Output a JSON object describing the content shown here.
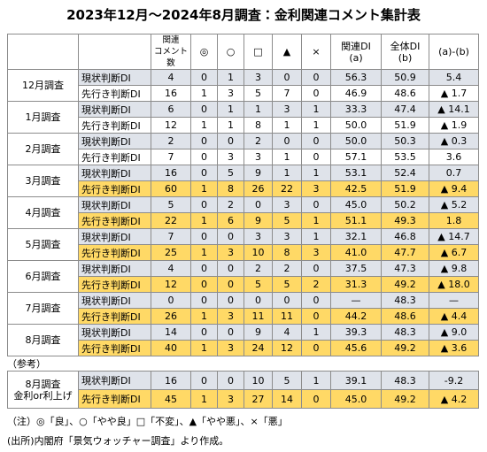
{
  "title": "2023年12月～2024年8月調査：金利関連コメント集計表",
  "table": {
    "header": [
      "",
      "",
      "関連\nコメント数",
      "◎",
      "○",
      "□",
      "▲",
      "×",
      "関連DI\n(a)",
      "全体DI\n(b)",
      "(a)-(b)"
    ],
    "groups": [
      {
        "label": "12月調査",
        "rows": [
          {
            "label": "現状判断DI",
            "cells": [
              "4",
              "0",
              "1",
              "3",
              "0",
              "0",
              "56.3",
              "50.9",
              "5.4"
            ]
          },
          {
            "label": "先行き判断DI",
            "cells": [
              "16",
              "1",
              "3",
              "5",
              "7",
              "0",
              "46.9",
              "48.6",
              "▲ 1.7"
            ]
          }
        ]
      },
      {
        "label": "1月調査",
        "rows": [
          {
            "label": "現状判断DI",
            "cells": [
              "6",
              "0",
              "1",
              "1",
              "3",
              "1",
              "33.3",
              "47.4",
              "▲ 14.1"
            ]
          },
          {
            "label": "先行き判断DI",
            "cells": [
              "12",
              "1",
              "1",
              "8",
              "1",
              "1",
              "50.0",
              "51.9",
              "▲ 1.9"
            ]
          }
        ]
      },
      {
        "label": "2月調査",
        "rows": [
          {
            "label": "現状判断DI",
            "cells": [
              "2",
              "0",
              "0",
              "2",
              "0",
              "0",
              "50.0",
              "50.3",
              "▲ 0.3"
            ]
          },
          {
            "label": "先行き判断DI",
            "cells": [
              "7",
              "0",
              "3",
              "3",
              "1",
              "0",
              "57.1",
              "53.5",
              "3.6"
            ]
          }
        ]
      },
      {
        "label": "3月調査",
        "rows": [
          {
            "label": "現状判断DI",
            "cells": [
              "16",
              "0",
              "5",
              "9",
              "1",
              "1",
              "53.1",
              "52.4",
              "0.7"
            ]
          },
          {
            "label": "先行き判断DI",
            "cells": [
              "60",
              "1",
              "8",
              "26",
              "22",
              "3",
              "42.5",
              "51.9",
              "▲ 9.4"
            ],
            "highlight": true
          }
        ]
      },
      {
        "label": "4月調査",
        "rows": [
          {
            "label": "現状判断DI",
            "cells": [
              "5",
              "0",
              "2",
              "0",
              "3",
              "0",
              "45.0",
              "50.2",
              "▲ 5.2"
            ]
          },
          {
            "label": "先行き判断DI",
            "cells": [
              "22",
              "1",
              "6",
              "9",
              "5",
              "1",
              "51.1",
              "49.3",
              "1.8"
            ],
            "highlight": true
          }
        ]
      },
      {
        "label": "5月調査",
        "rows": [
          {
            "label": "現状判断DI",
            "cells": [
              "7",
              "0",
              "0",
              "3",
              "3",
              "1",
              "32.1",
              "46.8",
              "▲ 14.7"
            ]
          },
          {
            "label": "先行き判断DI",
            "cells": [
              "25",
              "1",
              "3",
              "10",
              "8",
              "3",
              "41.0",
              "47.7",
              "▲ 6.7"
            ],
            "highlight": true
          }
        ]
      },
      {
        "label": "6月調査",
        "rows": [
          {
            "label": "現状判断DI",
            "cells": [
              "4",
              "0",
              "0",
              "2",
              "2",
              "0",
              "37.5",
              "47.3",
              "▲ 9.8"
            ]
          },
          {
            "label": "先行き判断DI",
            "cells": [
              "12",
              "0",
              "0",
              "5",
              "5",
              "2",
              "31.3",
              "49.2",
              "▲ 18.0"
            ],
            "highlight": true
          }
        ]
      },
      {
        "label": "7月調査",
        "rows": [
          {
            "label": "現状判断DI",
            "cells": [
              "0",
              "0",
              "0",
              "0",
              "0",
              "0",
              "—",
              "48.3",
              "—"
            ]
          },
          {
            "label": "先行き判断DI",
            "cells": [
              "26",
              "1",
              "3",
              "11",
              "11",
              "0",
              "44.2",
              "48.6",
              "▲ 4.4"
            ],
            "highlight": true
          }
        ]
      },
      {
        "label": "8月調査",
        "rows": [
          {
            "label": "現状判断DI",
            "cells": [
              "14",
              "0",
              "0",
              "9",
              "4",
              "1",
              "39.3",
              "48.3",
              "▲ 9.0"
            ]
          },
          {
            "label": "先行き判断DI",
            "cells": [
              "40",
              "1",
              "3",
              "24",
              "12",
              "0",
              "45.6",
              "49.2",
              "▲ 3.6"
            ],
            "highlight": true
          }
        ]
      }
    ]
  },
  "reference": {
    "label": "（参考）",
    "groups": [
      {
        "label": "8月調査\n金利or利上げ",
        "rows": [
          {
            "label": "現状判断DI",
            "cells": [
              "16",
              "0",
              "0",
              "10",
              "5",
              "1",
              "39.1",
              "48.3",
              "-9.2"
            ]
          },
          {
            "label": "先行き判断DI",
            "cells": [
              "45",
              "1",
              "3",
              "27",
              "14",
              "0",
              "45.0",
              "49.2",
              "▲ 4.2"
            ],
            "highlight": true
          }
        ]
      }
    ]
  },
  "notes": [
    "（注）◎「良」、○「やや良」□「不変」、▲「やや悪」、×「悪」",
    "(出所)内閣府「景気ウォッチャー調査」より作成。"
  ]
}
